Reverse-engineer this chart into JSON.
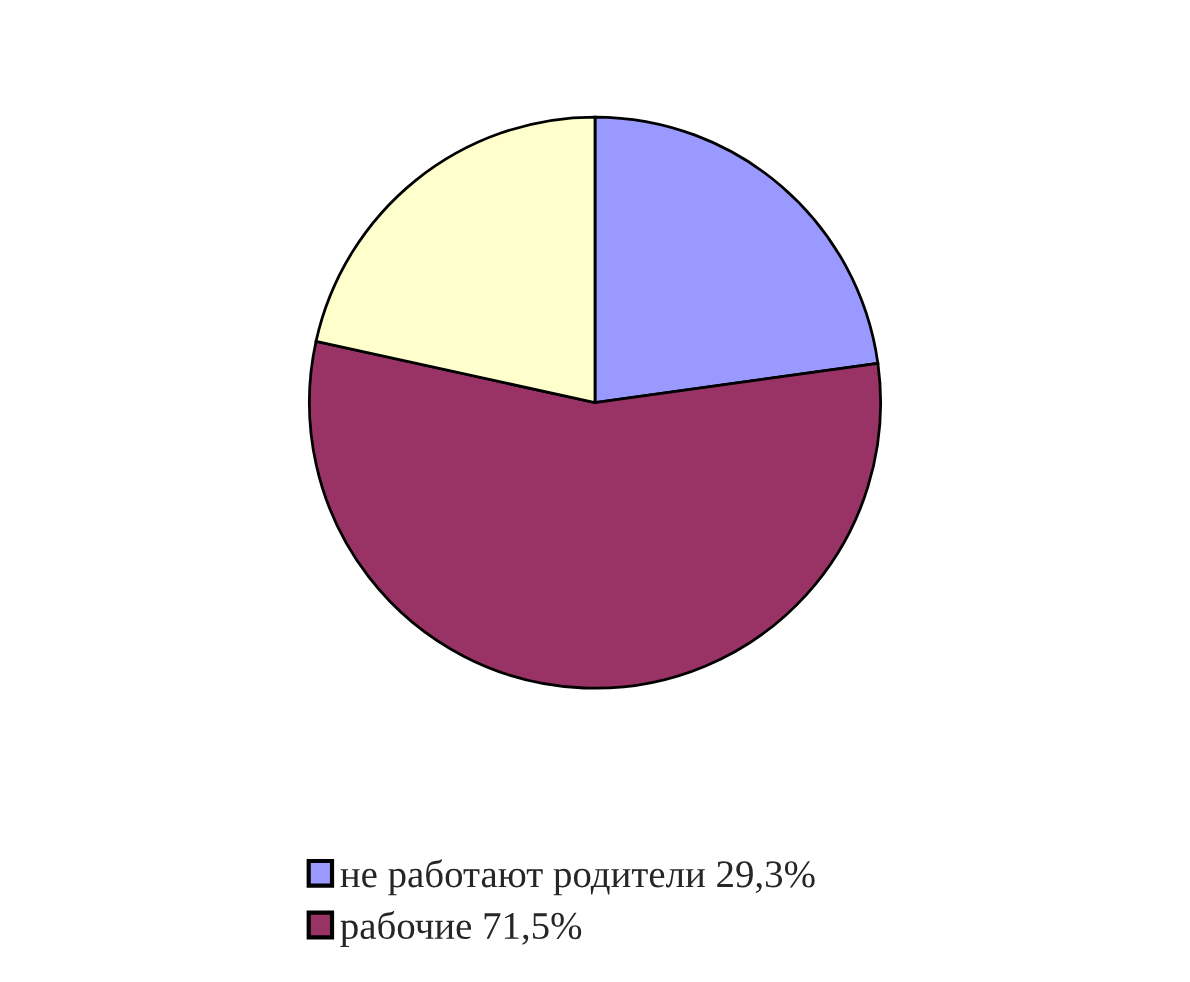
{
  "chart_data": {
    "type": "pie",
    "categories": [
      "не работают родители 29,3%",
      "рабочие 71,5%",
      null
    ],
    "values": [
      29.3,
      71.5,
      27.7
    ],
    "colors": [
      "#9999ff",
      "#993366",
      "#ffffcc"
    ],
    "legend": "bottom left"
  }
}
